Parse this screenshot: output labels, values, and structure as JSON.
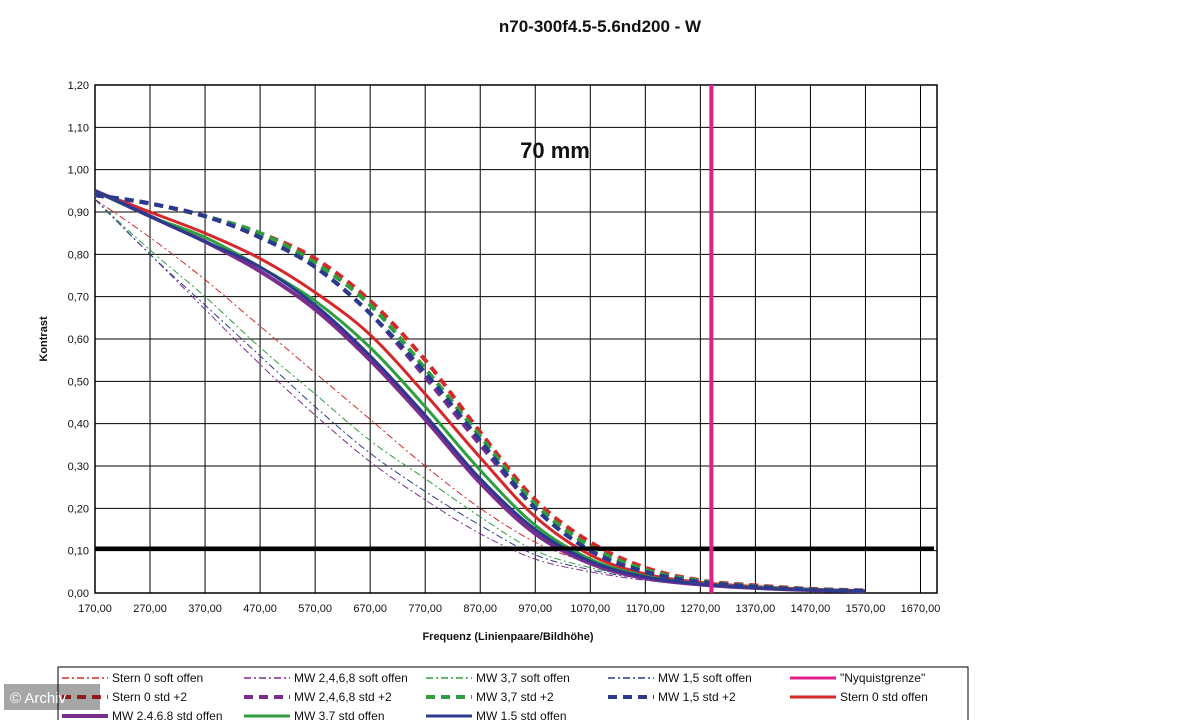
{
  "watermark": "© Archiv",
  "chart_data": {
    "type": "line",
    "title": "n70-300f4.5-5.6nd200 - W",
    "annotation": "70 mm",
    "xlabel": "Frequenz (Linienpaare/Bildhöhe)",
    "ylabel": "Kontrast",
    "xlim": [
      170,
      1700
    ],
    "ylim": [
      0,
      1.2
    ],
    "x_ticks": [
      "170,00",
      "270,00",
      "370,00",
      "470,00",
      "570,00",
      "670,00",
      "770,00",
      "870,00",
      "970,00",
      "1070,00",
      "1170,00",
      "1270,00",
      "1370,00",
      "1470,00",
      "1570,00",
      "1670,00"
    ],
    "y_ticks": [
      "0,00",
      "0,10",
      "0,20",
      "0,30",
      "0,40",
      "0,50",
      "0,60",
      "0,70",
      "0,80",
      "0,90",
      "1,00",
      "1,10",
      "1,20"
    ],
    "grid": true,
    "legend_position": "bottom",
    "nyquist_x": 1290,
    "threshold_y": 0.105,
    "series": [
      {
        "name": "Stern 0 soft offen",
        "color": "#d62828",
        "style": "dashdot",
        "width": 1,
        "x": [
          170,
          270,
          370,
          470,
          570,
          670,
          770,
          870,
          970,
          1070,
          1170,
          1270,
          1370,
          1470,
          1570
        ],
        "y": [
          0.93,
          0.84,
          0.74,
          0.63,
          0.52,
          0.41,
          0.3,
          0.2,
          0.12,
          0.07,
          0.04,
          0.025,
          0.015,
          0.01,
          0.005
        ]
      },
      {
        "name": "MW 2,4,6,8 soft offen",
        "color": "#7b2d8e",
        "style": "dashdot",
        "width": 1,
        "x": [
          170,
          270,
          370,
          470,
          570,
          670,
          770,
          870,
          970,
          1070,
          1170,
          1270,
          1370,
          1470,
          1570
        ],
        "y": [
          0.93,
          0.8,
          0.67,
          0.54,
          0.42,
          0.31,
          0.22,
          0.14,
          0.08,
          0.05,
          0.03,
          0.02,
          0.013,
          0.008,
          0.005
        ]
      },
      {
        "name": "MW 3,7 soft offen",
        "color": "#2e9e3e",
        "style": "dashdot",
        "width": 1,
        "x": [
          170,
          270,
          370,
          470,
          570,
          670,
          770,
          870,
          970,
          1070,
          1170,
          1270,
          1370,
          1470,
          1570
        ],
        "y": [
          0.93,
          0.81,
          0.7,
          0.58,
          0.47,
          0.36,
          0.27,
          0.18,
          0.1,
          0.06,
          0.035,
          0.022,
          0.014,
          0.009,
          0.005
        ]
      },
      {
        "name": "MW 1,5 soft offen",
        "color": "#2b3a8f",
        "style": "dashdot",
        "width": 1,
        "x": [
          170,
          270,
          370,
          470,
          570,
          670,
          770,
          870,
          970,
          1070,
          1170,
          1270,
          1370,
          1470,
          1570
        ],
        "y": [
          0.93,
          0.8,
          0.68,
          0.56,
          0.44,
          0.33,
          0.24,
          0.16,
          0.09,
          0.055,
          0.033,
          0.021,
          0.013,
          0.008,
          0.005
        ]
      },
      {
        "name": "\"Nyquistgrenze\"",
        "color": "#e0208a",
        "style": "solid",
        "width": 3,
        "vertical": true
      },
      {
        "name": "Stern 0 std +2",
        "color": "#d62828",
        "style": "dash",
        "width": 4,
        "x": [
          170,
          270,
          370,
          470,
          570,
          670,
          770,
          870,
          970,
          1070,
          1170,
          1270,
          1370,
          1470,
          1570
        ],
        "y": [
          0.94,
          0.92,
          0.89,
          0.85,
          0.79,
          0.69,
          0.55,
          0.38,
          0.22,
          0.12,
          0.06,
          0.03,
          0.018,
          0.01,
          0.006
        ]
      },
      {
        "name": "MW 2,4,6,8 std +2",
        "color": "#7b2d8e",
        "style": "dash",
        "width": 4,
        "x": [
          170,
          270,
          370,
          470,
          570,
          670,
          770,
          870,
          970,
          1070,
          1170,
          1270,
          1370,
          1470,
          1570
        ],
        "y": [
          0.94,
          0.92,
          0.89,
          0.84,
          0.77,
          0.66,
          0.51,
          0.35,
          0.2,
          0.1,
          0.05,
          0.025,
          0.015,
          0.008,
          0.005
        ]
      },
      {
        "name": "MW 3,7 std +2",
        "color": "#2e9e3e",
        "style": "dash",
        "width": 4,
        "x": [
          170,
          270,
          370,
          470,
          570,
          670,
          770,
          870,
          970,
          1070,
          1170,
          1270,
          1370,
          1470,
          1570
        ],
        "y": [
          0.94,
          0.92,
          0.89,
          0.85,
          0.78,
          0.68,
          0.53,
          0.37,
          0.21,
          0.11,
          0.055,
          0.028,
          0.016,
          0.009,
          0.005
        ]
      },
      {
        "name": "MW 1,5 std +2",
        "color": "#2b3a8f",
        "style": "dash",
        "width": 4,
        "x": [
          170,
          270,
          370,
          470,
          570,
          670,
          770,
          870,
          970,
          1070,
          1170,
          1270,
          1370,
          1470,
          1570
        ],
        "y": [
          0.94,
          0.92,
          0.89,
          0.84,
          0.77,
          0.66,
          0.52,
          0.36,
          0.2,
          0.1,
          0.05,
          0.026,
          0.015,
          0.008,
          0.005
        ]
      },
      {
        "name": "Stern 0 std offen",
        "color": "#d62828",
        "style": "solid",
        "width": 3,
        "x": [
          170,
          270,
          370,
          470,
          570,
          670,
          770,
          870,
          970,
          1070,
          1170,
          1270,
          1370,
          1470,
          1570
        ],
        "y": [
          0.95,
          0.9,
          0.85,
          0.79,
          0.71,
          0.61,
          0.47,
          0.32,
          0.18,
          0.09,
          0.045,
          0.025,
          0.015,
          0.009,
          0.005
        ]
      },
      {
        "name": "MW 2,4,6,8 std offen",
        "color": "#7b2d8e",
        "style": "solid",
        "width": 4,
        "x": [
          170,
          270,
          370,
          470,
          570,
          670,
          770,
          870,
          970,
          1070,
          1170,
          1270,
          1370,
          1470,
          1570
        ],
        "y": [
          0.95,
          0.89,
          0.83,
          0.76,
          0.67,
          0.55,
          0.41,
          0.26,
          0.14,
          0.07,
          0.035,
          0.02,
          0.012,
          0.007,
          0.004
        ]
      },
      {
        "name": "MW 3,7 std offen",
        "color": "#2e9e3e",
        "style": "solid",
        "width": 3,
        "x": [
          170,
          270,
          370,
          470,
          570,
          670,
          770,
          870,
          970,
          1070,
          1170,
          1270,
          1370,
          1470,
          1570
        ],
        "y": [
          0.95,
          0.89,
          0.84,
          0.77,
          0.69,
          0.58,
          0.44,
          0.29,
          0.16,
          0.08,
          0.04,
          0.022,
          0.013,
          0.008,
          0.004
        ]
      },
      {
        "name": "MW 1,5 std offen",
        "color": "#2b3a8f",
        "style": "solid",
        "width": 3,
        "x": [
          170,
          270,
          370,
          470,
          570,
          670,
          770,
          870,
          970,
          1070,
          1170,
          1270,
          1370,
          1470,
          1570
        ],
        "y": [
          0.95,
          0.89,
          0.83,
          0.77,
          0.68,
          0.56,
          0.42,
          0.27,
          0.15,
          0.075,
          0.038,
          0.021,
          0.012,
          0.007,
          0.004
        ]
      }
    ]
  }
}
